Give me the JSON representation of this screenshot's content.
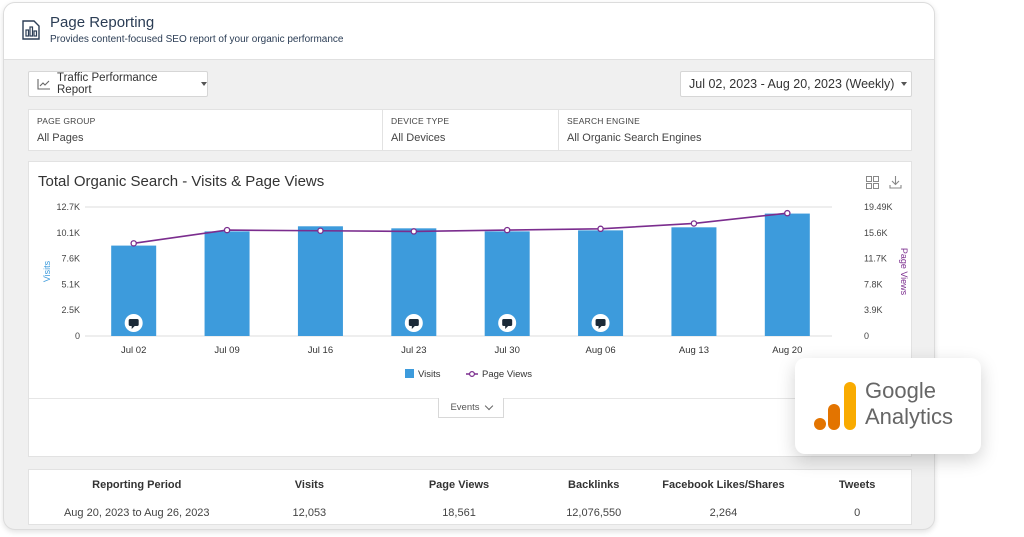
{
  "header": {
    "title": "Page Reporting",
    "subtitle": "Provides content-focused SEO report of your organic performance",
    "icon": "bar-chart-page-icon"
  },
  "toolbar": {
    "report_label": "Traffic Performance Report",
    "date_range": "Jul 02, 2023 - Aug 20, 2023 (Weekly)"
  },
  "filters": [
    {
      "label": "PAGE GROUP",
      "value": "All Pages"
    },
    {
      "label": "DEVICE TYPE",
      "value": "All Devices"
    },
    {
      "label": "SEARCH ENGINE",
      "value": "All Organic Search Engines"
    }
  ],
  "chart": {
    "title": "Total Organic Search - Visits & Page Views",
    "events_label": "Events",
    "colors": {
      "visits": "#3d9bdc",
      "page_views": "#7b2d8e",
      "marker": "#1b2a38"
    }
  },
  "chart_data": {
    "type": "bar",
    "categories": [
      "Jul 02",
      "Jul 09",
      "Jul 16",
      "Jul 23",
      "Jul 30",
      "Aug 06",
      "Aug 13",
      "Aug 20"
    ],
    "series": [
      {
        "name": "Visits",
        "type": "bar",
        "axis": "left",
        "values": [
          8900,
          10300,
          10800,
          10600,
          10300,
          10400,
          10700,
          12053
        ]
      },
      {
        "name": "Page Views",
        "type": "line",
        "axis": "right",
        "values": [
          14000,
          16000,
          15900,
          15800,
          16000,
          16200,
          17000,
          18561
        ]
      }
    ],
    "event_markers": [
      "Jul 02",
      "Jul 23",
      "Jul 30",
      "Aug 06"
    ],
    "ylabel": "Visits",
    "ylabel_right": "Page Views",
    "ylim": [
      0,
      12700
    ],
    "ylim_right": [
      0,
      19490
    ],
    "yticks_labels": [
      "0",
      "2.5K",
      "5.1K",
      "7.6K",
      "10.1K",
      "12.7K"
    ],
    "yticks_right_labels": [
      "0",
      "3.9K",
      "7.8K",
      "11.7K",
      "15.6K",
      "19.49K"
    ],
    "legend": [
      "Visits",
      "Page Views"
    ],
    "legend_position": "bottom"
  },
  "table": {
    "headers": [
      "Reporting Period",
      "Visits",
      "Page Views",
      "Backlinks",
      "Facebook Likes/Shares",
      "Tweets"
    ],
    "row": [
      "Aug 20, 2023 to Aug 26, 2023",
      "12,053",
      "18,561",
      "12,076,550",
      "2,264",
      "0"
    ]
  },
  "ga_badge": {
    "line1": "Google",
    "line2": "Analytics"
  }
}
